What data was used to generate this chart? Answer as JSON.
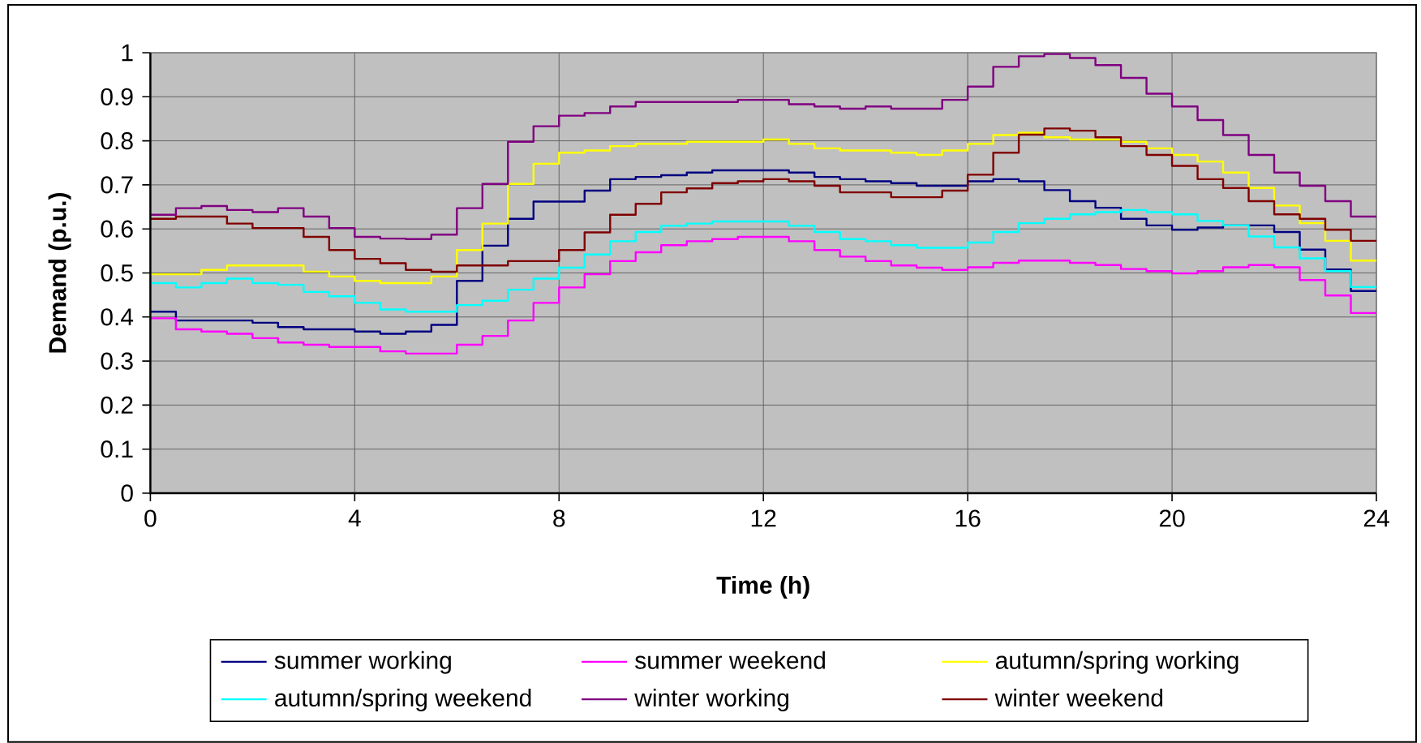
{
  "chart_data": {
    "type": "step",
    "xlabel": "Time (h)",
    "ylabel": "Demand (p.u.)",
    "x": [
      0,
      0.5,
      1,
      1.5,
      2,
      2.5,
      3,
      3.5,
      4,
      4.5,
      5,
      5.5,
      6,
      6.5,
      7,
      7.5,
      8,
      8.5,
      9,
      9.5,
      10,
      10.5,
      11,
      11.5,
      12,
      12.5,
      13,
      13.5,
      14,
      14.5,
      15,
      15.5,
      16,
      16.5,
      17,
      17.5,
      18,
      18.5,
      19,
      19.5,
      20,
      20.5,
      21,
      21.5,
      22,
      22.5,
      23,
      23.5,
      24
    ],
    "series": [
      {
        "name": "summer working",
        "color": "#000080",
        "values": [
          0.412,
          0.392,
          0.392,
          0.392,
          0.387,
          0.377,
          0.372,
          0.372,
          0.367,
          0.362,
          0.367,
          0.382,
          0.482,
          0.562,
          0.623,
          0.662,
          0.662,
          0.687,
          0.713,
          0.718,
          0.722,
          0.728,
          0.733,
          0.733,
          0.733,
          0.728,
          0.718,
          0.713,
          0.708,
          0.704,
          0.698,
          0.698,
          0.708,
          0.713,
          0.708,
          0.688,
          0.663,
          0.648,
          0.623,
          0.608,
          0.598,
          0.603,
          0.608,
          0.608,
          0.593,
          0.553,
          0.508,
          0.459,
          0.459
        ]
      },
      {
        "name": "summer weekend",
        "color": "#ff00ff",
        "values": [
          0.397,
          0.372,
          0.367,
          0.362,
          0.352,
          0.342,
          0.337,
          0.332,
          0.332,
          0.322,
          0.317,
          0.317,
          0.337,
          0.357,
          0.392,
          0.432,
          0.467,
          0.497,
          0.527,
          0.547,
          0.563,
          0.572,
          0.577,
          0.582,
          0.582,
          0.572,
          0.552,
          0.537,
          0.527,
          0.517,
          0.512,
          0.507,
          0.513,
          0.523,
          0.528,
          0.528,
          0.523,
          0.518,
          0.509,
          0.504,
          0.499,
          0.504,
          0.513,
          0.518,
          0.513,
          0.484,
          0.449,
          0.409,
          0.409
        ]
      },
      {
        "name": "autumn/spring working",
        "color": "#ffff00",
        "values": [
          0.497,
          0.497,
          0.507,
          0.517,
          0.517,
          0.517,
          0.503,
          0.492,
          0.482,
          0.477,
          0.477,
          0.492,
          0.552,
          0.612,
          0.702,
          0.748,
          0.773,
          0.778,
          0.788,
          0.793,
          0.793,
          0.798,
          0.798,
          0.798,
          0.803,
          0.793,
          0.783,
          0.778,
          0.778,
          0.773,
          0.768,
          0.778,
          0.793,
          0.813,
          0.818,
          0.808,
          0.803,
          0.803,
          0.798,
          0.783,
          0.768,
          0.753,
          0.728,
          0.693,
          0.653,
          0.613,
          0.573,
          0.528,
          0.528
        ]
      },
      {
        "name": "autumn/spring weekend",
        "color": "#00ffff",
        "values": [
          0.477,
          0.467,
          0.477,
          0.487,
          0.477,
          0.473,
          0.457,
          0.447,
          0.432,
          0.417,
          0.412,
          0.412,
          0.427,
          0.437,
          0.462,
          0.487,
          0.512,
          0.542,
          0.572,
          0.593,
          0.607,
          0.612,
          0.617,
          0.617,
          0.617,
          0.607,
          0.593,
          0.577,
          0.572,
          0.563,
          0.557,
          0.557,
          0.569,
          0.593,
          0.613,
          0.623,
          0.633,
          0.638,
          0.643,
          0.638,
          0.633,
          0.618,
          0.608,
          0.583,
          0.558,
          0.533,
          0.504,
          0.468,
          0.468
        ]
      },
      {
        "name": "winter working",
        "color": "#800080",
        "values": [
          0.632,
          0.647,
          0.652,
          0.643,
          0.638,
          0.647,
          0.628,
          0.602,
          0.582,
          0.578,
          0.577,
          0.587,
          0.647,
          0.702,
          0.798,
          0.833,
          0.857,
          0.863,
          0.878,
          0.888,
          0.888,
          0.888,
          0.888,
          0.893,
          0.893,
          0.883,
          0.878,
          0.873,
          0.878,
          0.873,
          0.873,
          0.893,
          0.923,
          0.968,
          0.992,
          0.997,
          0.988,
          0.972,
          0.943,
          0.907,
          0.878,
          0.847,
          0.813,
          0.768,
          0.728,
          0.698,
          0.663,
          0.628,
          0.628
        ]
      },
      {
        "name": "winter weekend",
        "color": "#800000",
        "values": [
          0.623,
          0.628,
          0.628,
          0.612,
          0.602,
          0.602,
          0.582,
          0.552,
          0.532,
          0.522,
          0.507,
          0.503,
          0.517,
          0.517,
          0.527,
          0.527,
          0.552,
          0.592,
          0.632,
          0.657,
          0.683,
          0.692,
          0.704,
          0.708,
          0.713,
          0.708,
          0.698,
          0.683,
          0.683,
          0.672,
          0.672,
          0.687,
          0.723,
          0.773,
          0.814,
          0.828,
          0.823,
          0.808,
          0.788,
          0.768,
          0.743,
          0.713,
          0.693,
          0.663,
          0.633,
          0.623,
          0.598,
          0.573,
          0.573
        ]
      }
    ],
    "xlim": [
      0,
      24
    ],
    "ylim": [
      0,
      1
    ],
    "xticks": [
      0,
      4,
      8,
      12,
      16,
      20,
      24
    ],
    "yticks": [
      0,
      0.1,
      0.2,
      0.3,
      0.4,
      0.5,
      0.6,
      0.7,
      0.8,
      0.9,
      1
    ],
    "grid": true,
    "legend": "bottom"
  }
}
